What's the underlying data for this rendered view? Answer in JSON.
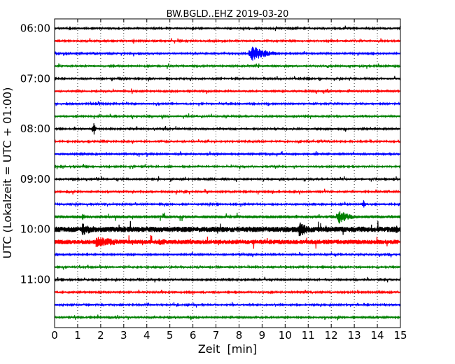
{
  "chart_data": {
    "type": "line",
    "title": "BW.BGLD..EHZ 2019-03-20",
    "xlabel": "Zeit  [min]",
    "ylabel": "UTC (Lokalzeit = UTC + 01:00)",
    "xlim": [
      0,
      15
    ],
    "x_ticks": [
      "0",
      "1",
      "2",
      "3",
      "4",
      "5",
      "6",
      "7",
      "8",
      "9",
      "10",
      "11",
      "12",
      "13",
      "14",
      "15"
    ],
    "y_ticks": [
      "06:00",
      "07:00",
      "08:00",
      "09:00",
      "10:00",
      "11:00"
    ],
    "grid": "vertical dotted",
    "trace_colors": [
      "#000000",
      "#ff0000",
      "#0000ff",
      "#008000"
    ],
    "trace_interval_min": 15,
    "traces": [
      {
        "start": "06:00",
        "color": "#000000",
        "amplitude": 1,
        "events": []
      },
      {
        "start": "06:15",
        "color": "#ff0000",
        "amplitude": 1,
        "events": []
      },
      {
        "start": "06:30",
        "color": "#0000ff",
        "amplitude": 1,
        "events": [
          {
            "t": 8.5,
            "amp": 12,
            "dur": 1.2
          }
        ]
      },
      {
        "start": "06:45",
        "color": "#008000",
        "amplitude": 1,
        "events": []
      },
      {
        "start": "07:00",
        "color": "#000000",
        "amplitude": 1,
        "events": []
      },
      {
        "start": "07:15",
        "color": "#ff0000",
        "amplitude": 1,
        "events": []
      },
      {
        "start": "07:30",
        "color": "#0000ff",
        "amplitude": 1,
        "events": []
      },
      {
        "start": "07:45",
        "color": "#008000",
        "amplitude": 1,
        "events": []
      },
      {
        "start": "08:00",
        "color": "#000000",
        "amplitude": 1,
        "events": [
          {
            "t": 1.7,
            "amp": 11,
            "dur": 0.1
          }
        ]
      },
      {
        "start": "08:15",
        "color": "#ff0000",
        "amplitude": 1,
        "events": []
      },
      {
        "start": "08:30",
        "color": "#0000ff",
        "amplitude": 1,
        "events": []
      },
      {
        "start": "08:45",
        "color": "#008000",
        "amplitude": 1,
        "events": []
      },
      {
        "start": "09:00",
        "color": "#000000",
        "amplitude": 1,
        "events": []
      },
      {
        "start": "09:15",
        "color": "#ff0000",
        "amplitude": 1,
        "events": []
      },
      {
        "start": "09:30",
        "color": "#0000ff",
        "amplitude": 1,
        "events": [
          {
            "t": 13.4,
            "amp": 7,
            "dur": 0.1
          }
        ]
      },
      {
        "start": "09:45",
        "color": "#008000",
        "amplitude": 1.6,
        "events": [
          {
            "t": 12.3,
            "amp": 11,
            "dur": 0.8
          },
          {
            "t": 1.2,
            "amp": 5,
            "dur": 0.3
          }
        ]
      },
      {
        "start": "10:00",
        "color": "#000000",
        "amplitude": 3,
        "events": [
          {
            "t": 1.2,
            "amp": 9,
            "dur": 1.2
          },
          {
            "t": 10.6,
            "amp": 11,
            "dur": 1.0
          },
          {
            "t": 14.8,
            "amp": 7,
            "dur": 0.3
          }
        ]
      },
      {
        "start": "10:15",
        "color": "#ff0000",
        "amplitude": 2.5,
        "events": [
          {
            "t": 1.8,
            "amp": 8,
            "dur": 2.2
          },
          {
            "t": 4.5,
            "amp": 5,
            "dur": 1.5
          }
        ]
      },
      {
        "start": "10:30",
        "color": "#0000ff",
        "amplitude": 1,
        "events": []
      },
      {
        "start": "10:45",
        "color": "#008000",
        "amplitude": 1,
        "events": []
      },
      {
        "start": "11:00",
        "color": "#000000",
        "amplitude": 1,
        "events": []
      },
      {
        "start": "11:15",
        "color": "#ff0000",
        "amplitude": 1,
        "events": []
      },
      {
        "start": "11:30",
        "color": "#0000ff",
        "amplitude": 1,
        "events": []
      },
      {
        "start": "11:45",
        "color": "#008000",
        "amplitude": 1,
        "events": []
      }
    ]
  }
}
